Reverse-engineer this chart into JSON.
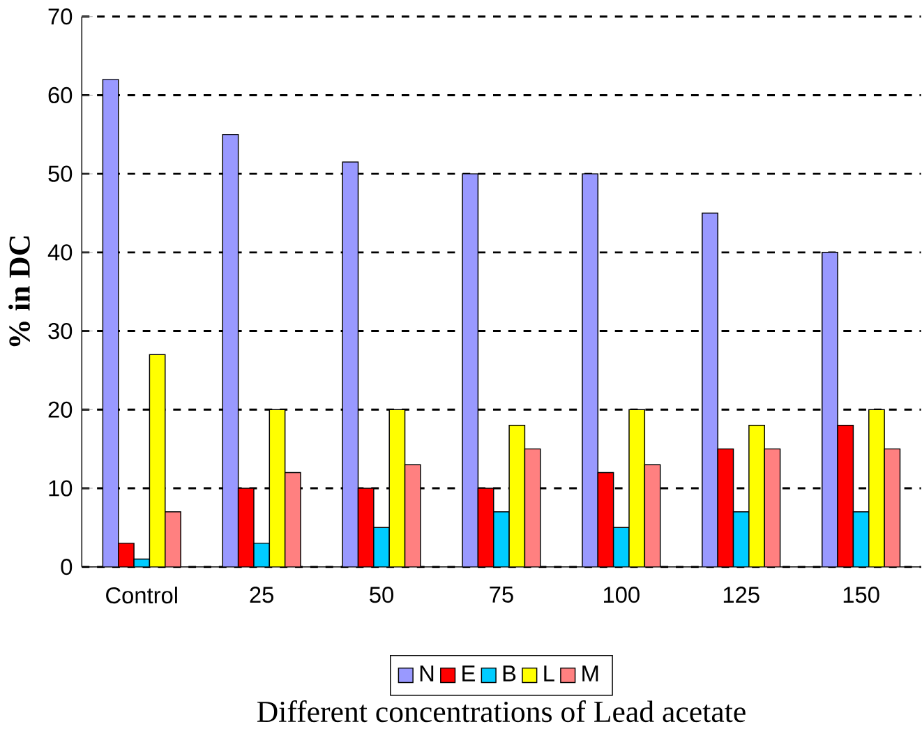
{
  "chart_data": {
    "type": "bar",
    "xlabel": "Different concentrations of Lead acetate",
    "ylabel": "% in DC",
    "categories": [
      "Control",
      "25",
      "50",
      "75",
      "100",
      "125",
      "150"
    ],
    "series": [
      {
        "name": "N",
        "color": "#9999ff",
        "values": [
          62,
          55,
          51.5,
          50,
          50,
          45,
          40
        ]
      },
      {
        "name": "E",
        "color": "#ff0000",
        "values": [
          3,
          10,
          10,
          10,
          12,
          15,
          18
        ]
      },
      {
        "name": "B",
        "color": "#00ccff",
        "values": [
          1,
          3,
          5,
          7,
          5,
          7,
          7
        ]
      },
      {
        "name": "L",
        "color": "#ffff00",
        "values": [
          27,
          20,
          20,
          18,
          20,
          18,
          20
        ]
      },
      {
        "name": "M",
        "color": "#ff8080",
        "values": [
          7,
          12,
          13,
          15,
          13,
          15,
          15
        ]
      }
    ],
    "ylim": [
      0,
      70
    ],
    "yticks": [
      0,
      10,
      20,
      30,
      40,
      50,
      60,
      70
    ],
    "grid": "y",
    "legend": "bottom"
  }
}
